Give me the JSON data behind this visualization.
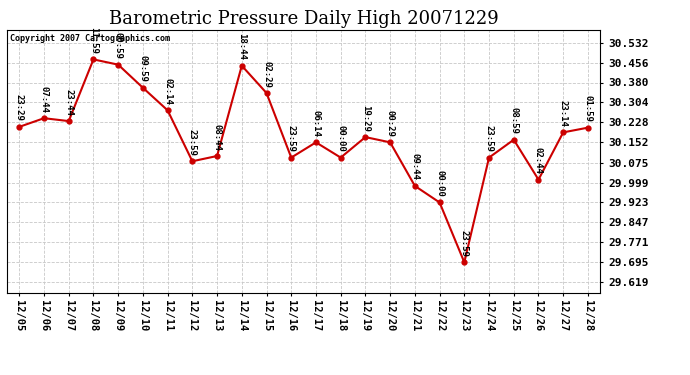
{
  "title": "Barometric Pressure Daily High 20071229",
  "copyright": "Copyright 2007 Cartographics.com",
  "dates": [
    "12/05",
    "12/06",
    "12/07",
    "12/08",
    "12/09",
    "12/10",
    "12/11",
    "12/12",
    "12/13",
    "12/14",
    "12/15",
    "12/16",
    "12/17",
    "12/18",
    "12/19",
    "12/20",
    "12/21",
    "12/22",
    "12/23",
    "12/24",
    "12/25",
    "12/26",
    "12/27",
    "12/28"
  ],
  "values": [
    30.211,
    30.244,
    30.233,
    30.468,
    30.448,
    30.36,
    30.274,
    30.08,
    30.1,
    30.444,
    30.34,
    30.094,
    30.152,
    30.094,
    30.172,
    30.152,
    29.986,
    29.923,
    29.695,
    30.094,
    30.162,
    30.01,
    30.19,
    30.208
  ],
  "labels": [
    "23:29",
    "07:44",
    "23:44",
    "11:59",
    "00:59",
    "09:59",
    "02:14",
    "23:59",
    "08:44",
    "18:44",
    "02:29",
    "23:59",
    "06:14",
    "00:00",
    "19:29",
    "00:29",
    "09:44",
    "00:00",
    "23:59",
    "23:59",
    "08:59",
    "02:44",
    "23:14",
    "01:59"
  ],
  "line_color": "#cc0000",
  "marker_color": "#cc0000",
  "bg_color": "#ffffff",
  "grid_color": "#c8c8c8",
  "title_fontsize": 13,
  "label_fontsize": 6.5,
  "xtick_fontsize": 7.5,
  "ytick_fontsize": 8,
  "yticks": [
    29.619,
    29.695,
    29.771,
    29.847,
    29.923,
    29.999,
    30.075,
    30.152,
    30.228,
    30.304,
    30.38,
    30.456,
    30.532
  ],
  "ylim_min": 29.58,
  "ylim_max": 30.58
}
